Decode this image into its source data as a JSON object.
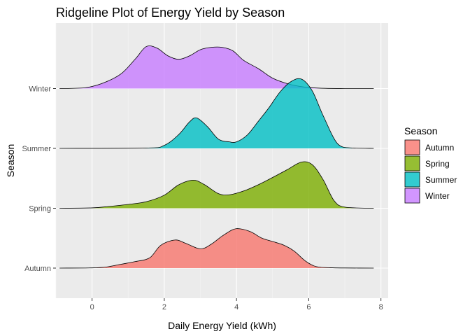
{
  "chart_data": {
    "type": "ridgeline",
    "title": "Ridgeline Plot of Energy Yield by Season",
    "xlabel": "Daily Energy Yield (kWh)",
    "ylabel": "Season",
    "xlim": [
      -1.0,
      8.2
    ],
    "x_ticks": [
      0,
      2,
      4,
      6,
      8
    ],
    "y_categories": [
      "Autumn",
      "Spring",
      "Summer",
      "Winter"
    ],
    "grid": true,
    "legend": {
      "title": "Season",
      "position": "right",
      "entries": [
        {
          "label": "Autumn",
          "color": "#F8766D"
        },
        {
          "label": "Spring",
          "color": "#7CAE00"
        },
        {
          "label": "Summer",
          "color": "#00BFC4"
        },
        {
          "label": "Winter",
          "color": "#C77CFF"
        }
      ]
    },
    "series": [
      {
        "name": "Autumn",
        "baseline": "Autumn",
        "color": "#F8766D",
        "x": [
          -0.9,
          0.0,
          0.4,
          0.8,
          1.2,
          1.6,
          1.9,
          2.3,
          2.6,
          3.0,
          3.3,
          3.6,
          3.9,
          4.1,
          4.4,
          4.7,
          5.0,
          5.3,
          5.6,
          5.9,
          6.2,
          6.6,
          7.0,
          7.8
        ],
        "y": [
          0.0,
          0.006,
          0.03,
          0.1,
          0.17,
          0.27,
          0.59,
          0.73,
          0.64,
          0.5,
          0.62,
          0.83,
          1.0,
          1.02,
          0.94,
          0.78,
          0.69,
          0.6,
          0.44,
          0.19,
          0.04,
          0.01,
          0.003,
          0.0
        ]
      },
      {
        "name": "Spring",
        "baseline": "Spring",
        "color": "#7CAE00",
        "x": [
          -0.9,
          0.0,
          0.5,
          1.0,
          1.5,
          2.0,
          2.4,
          2.8,
          3.1,
          3.5,
          3.8,
          4.2,
          4.6,
          5.0,
          5.4,
          5.8,
          6.1,
          6.4,
          6.7,
          7.0,
          7.8
        ],
        "y": [
          0.0,
          0.01,
          0.05,
          0.1,
          0.17,
          0.34,
          0.61,
          0.73,
          0.62,
          0.38,
          0.35,
          0.45,
          0.61,
          0.8,
          1.0,
          1.2,
          1.13,
          0.74,
          0.2,
          0.03,
          0.0
        ]
      },
      {
        "name": "Summer",
        "baseline": "Summer",
        "color": "#00BFC4",
        "x": [
          -0.9,
          1.5,
          2.0,
          2.4,
          2.7,
          2.9,
          3.2,
          3.5,
          3.8,
          4.0,
          4.3,
          4.6,
          4.9,
          5.2,
          5.5,
          5.8,
          6.1,
          6.4,
          6.8,
          7.2,
          7.8
        ],
        "y": [
          0.0,
          0.01,
          0.08,
          0.36,
          0.69,
          0.79,
          0.56,
          0.24,
          0.17,
          0.17,
          0.35,
          0.7,
          1.06,
          1.46,
          1.73,
          1.8,
          1.49,
          0.85,
          0.12,
          0.01,
          0.0
        ]
      },
      {
        "name": "Winter",
        "baseline": "Winter",
        "color": "#C77CFF",
        "x": [
          -0.9,
          -0.2,
          0.3,
          0.8,
          1.2,
          1.5,
          1.8,
          2.1,
          2.4,
          2.7,
          3.0,
          3.3,
          3.6,
          3.9,
          4.2,
          4.6,
          5.0,
          5.4,
          5.8,
          6.3,
          7.0,
          7.8
        ],
        "y": [
          0.0,
          0.02,
          0.14,
          0.38,
          0.77,
          1.09,
          1.05,
          0.85,
          0.76,
          0.85,
          1.01,
          1.07,
          1.07,
          0.98,
          0.73,
          0.52,
          0.27,
          0.13,
          0.05,
          0.01,
          0.0,
          0.0
        ]
      }
    ]
  }
}
